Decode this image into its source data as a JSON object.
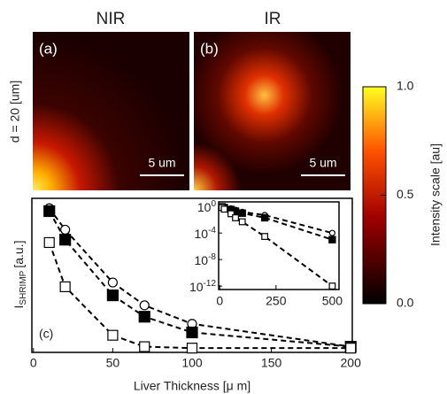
{
  "panels": {
    "titles": [
      "NIR",
      "IR"
    ],
    "tags": [
      "(a)",
      "(b)"
    ],
    "scalebars": [
      "5 um",
      "5 um"
    ],
    "row_label": "d = 20 [um]"
  },
  "colorbar": {
    "label": "Intensity scale [au]",
    "lim": [
      0,
      1
    ],
    "ticks": [
      {
        "value": 0,
        "label": "0.0"
      },
      {
        "value": 0.5,
        "label": "0.5"
      },
      {
        "value": 1,
        "label": "1.0"
      }
    ]
  },
  "chart_data": [
    {
      "type": "line",
      "annotation": "(c)",
      "xlabel": "Liver Thickness [μ m]",
      "ylabel": [
        "I",
        "SHRIMP",
        "[a.u.]"
      ],
      "x": [
        10,
        20,
        50,
        70,
        100,
        200
      ],
      "xlim": [
        -1,
        201
      ],
      "ylim": [
        -0.03,
        1.05
      ],
      "xticks": [
        0,
        50,
        100,
        150,
        200
      ],
      "series": [
        {
          "marker": "circle",
          "filled": false,
          "color": "#000000",
          "values": [
            0.98,
            0.83,
            0.46,
            0.3,
            0.17,
            0.01
          ]
        },
        {
          "marker": "square",
          "filled": true,
          "color": "#000000",
          "values": [
            0.96,
            0.76,
            0.37,
            0.22,
            0.11,
            0.01
          ]
        },
        {
          "marker": "square",
          "filled": false,
          "color": "#000000",
          "values": [
            0.74,
            0.43,
            0.09,
            0.01,
            0.0,
            0.0
          ]
        }
      ]
    },
    {
      "type": "line",
      "log_y": true,
      "x": [
        10,
        20,
        50,
        70,
        100,
        200,
        500
      ],
      "xlim": [
        -5,
        530
      ],
      "ylim": [
        3e-13,
        5
      ],
      "xticks": [
        0,
        250,
        500
      ],
      "yticks": [
        {
          "value": 1,
          "label": "10^0"
        },
        {
          "value": 0.0001,
          "label": "10^-4"
        },
        {
          "value": 1e-08,
          "label": "10^-8"
        },
        {
          "value": 1e-12,
          "label": "10^-12"
        }
      ],
      "series": [
        {
          "marker": "circle",
          "filled": false,
          "color": "#000000",
          "values": [
            1,
            0.8,
            0.5,
            0.3,
            0.15,
            0.05,
            0.0001
          ]
        },
        {
          "marker": "square",
          "filled": true,
          "color": "#000000",
          "values": [
            0.9,
            0.7,
            0.35,
            0.2,
            0.1,
            0.02,
            1e-05
          ]
        },
        {
          "marker": "square",
          "filled": false,
          "color": "#000000",
          "values": [
            0.7,
            0.4,
            0.08,
            0.02,
            0.005,
            3e-05,
            1e-12
          ]
        }
      ]
    }
  ]
}
